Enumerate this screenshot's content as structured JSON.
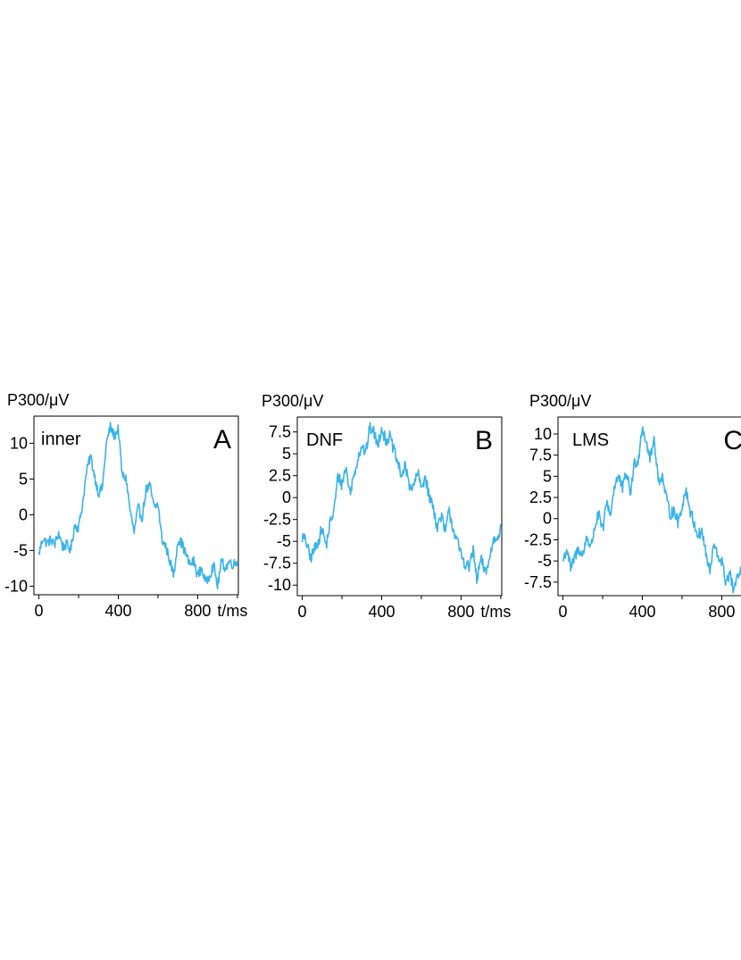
{
  "chart_data": [
    {
      "type": "line",
      "ylabel": "P300/μV",
      "xlabel": "t/ms",
      "name_label": "inner",
      "letter": "A",
      "line_color": "#3ab4e8",
      "xlim": [
        -25,
        1005
      ],
      "ylim": [
        -11.2,
        13.8
      ],
      "x_ticks": [
        0,
        400,
        800
      ],
      "x_minor_ticks": [
        200,
        600,
        1000
      ],
      "y_ticks": [
        10,
        5,
        0,
        -5,
        -10
      ],
      "y_tick_labels": [
        "10",
        "5",
        "0",
        "-5",
        "-10"
      ],
      "keypoints_x": [
        0,
        20,
        40,
        60,
        80,
        100,
        120,
        140,
        160,
        180,
        200,
        220,
        240,
        260,
        280,
        300,
        320,
        340,
        360,
        380,
        400,
        420,
        440,
        460,
        480,
        500,
        520,
        540,
        560,
        580,
        600,
        620,
        640,
        660,
        680,
        700,
        720,
        740,
        760,
        780,
        800,
        820,
        840,
        860,
        880,
        900,
        920,
        940,
        960,
        980,
        1000
      ],
      "keypoints_y": [
        -5.5,
        -3.2,
        -4.0,
        -3.5,
        -4.2,
        -2.5,
        -4.5,
        -4.2,
        -5.0,
        -1.5,
        -1.8,
        1.5,
        6.0,
        8.3,
        5.5,
        3.0,
        3.8,
        10.0,
        12.3,
        11.0,
        12.0,
        5.5,
        5.0,
        0.5,
        -2.5,
        1.0,
        -0.5,
        3.5,
        4.0,
        1.0,
        1.5,
        -3.5,
        -4.5,
        -6.5,
        -8.5,
        -3.5,
        -4.0,
        -5.5,
        -7.0,
        -6.5,
        -8.5,
        -7.5,
        -9.5,
        -8.5,
        -7.0,
        -10.0,
        -6.5,
        -7.5,
        -6.5,
        -7.0,
        -6.5
      ]
    },
    {
      "type": "line",
      "ylabel": "P300/μV",
      "xlabel": "t/ms",
      "name_label": "DNF",
      "letter": "B",
      "line_color": "#3ab4e8",
      "xlim": [
        -25,
        1005
      ],
      "ylim": [
        -11.2,
        9.2
      ],
      "x_ticks": [
        0,
        400,
        800
      ],
      "x_minor_ticks": [
        200,
        600,
        1000
      ],
      "y_ticks": [
        7.5,
        5,
        2.5,
        0,
        -2.5,
        -5,
        -7.5,
        -10
      ],
      "y_tick_labels": [
        "7.5",
        "5",
        "2.5",
        "0",
        "-2.5",
        "-5",
        "-7.5",
        "-10"
      ],
      "keypoints_x": [
        0,
        20,
        40,
        60,
        80,
        100,
        120,
        140,
        160,
        180,
        200,
        220,
        240,
        260,
        280,
        300,
        320,
        340,
        360,
        380,
        400,
        420,
        440,
        460,
        480,
        500,
        520,
        540,
        560,
        580,
        600,
        620,
        640,
        660,
        680,
        700,
        720,
        740,
        760,
        780,
        800,
        820,
        840,
        860,
        880,
        900,
        920,
        940,
        960,
        980,
        1000
      ],
      "keypoints_y": [
        -4.5,
        -5.0,
        -7.0,
        -6.0,
        -5.0,
        -3.5,
        -5.5,
        -3.0,
        -1.5,
        2.5,
        1.5,
        3.5,
        0.5,
        2.5,
        4.5,
        6.0,
        5.0,
        8.0,
        7.5,
        6.0,
        8.0,
        6.5,
        7.0,
        5.5,
        4.0,
        2.5,
        3.5,
        1.5,
        1.0,
        3.0,
        1.0,
        2.5,
        0.0,
        -1.0,
        -3.5,
        -2.0,
        -4.0,
        -1.5,
        -3.5,
        -5.0,
        -6.5,
        -7.5,
        -8.0,
        -6.0,
        -9.5,
        -7.0,
        -8.5,
        -7.5,
        -5.0,
        -4.5,
        -3.5
      ]
    },
    {
      "type": "line",
      "ylabel": "P300/μV",
      "xlabel": "",
      "name_label": "LMS",
      "letter": "C",
      "line_color": "#3ab4e8",
      "xlim": [
        -25,
        1005
      ],
      "ylim": [
        -9.1,
        12.0
      ],
      "x_ticks": [
        0,
        400,
        800
      ],
      "x_minor_ticks": [
        200,
        600,
        1000
      ],
      "y_ticks": [
        10,
        7.5,
        5,
        2.5,
        0,
        -2.5,
        -5,
        -7.5
      ],
      "y_tick_labels": [
        "10",
        "7.5",
        "5",
        "2.5",
        "0",
        "-2.5",
        "-5",
        "-7.5"
      ],
      "keypoints_x": [
        0,
        20,
        40,
        60,
        80,
        100,
        120,
        140,
        160,
        180,
        200,
        220,
        240,
        260,
        280,
        300,
        320,
        340,
        360,
        380,
        400,
        420,
        440,
        460,
        480,
        500,
        520,
        540,
        560,
        580,
        600,
        620,
        640,
        660,
        680,
        700,
        720,
        740,
        760,
        780,
        800,
        820,
        840,
        860,
        880,
        900
      ],
      "keypoints_y": [
        -5.0,
        -3.5,
        -6.0,
        -4.5,
        -3.5,
        -4.5,
        -2.0,
        -3.5,
        -1.0,
        0.5,
        -1.5,
        2.0,
        0.5,
        4.0,
        5.0,
        3.5,
        5.5,
        3.0,
        6.5,
        7.0,
        11.0,
        9.0,
        7.0,
        9.5,
        4.5,
        5.0,
        2.5,
        0.5,
        1.0,
        -0.5,
        1.5,
        3.5,
        1.0,
        -0.5,
        -2.0,
        -1.5,
        -4.0,
        -6.5,
        -3.0,
        -4.5,
        -5.0,
        -7.5,
        -6.5,
        -8.5,
        -7.0,
        -6.0
      ]
    }
  ]
}
